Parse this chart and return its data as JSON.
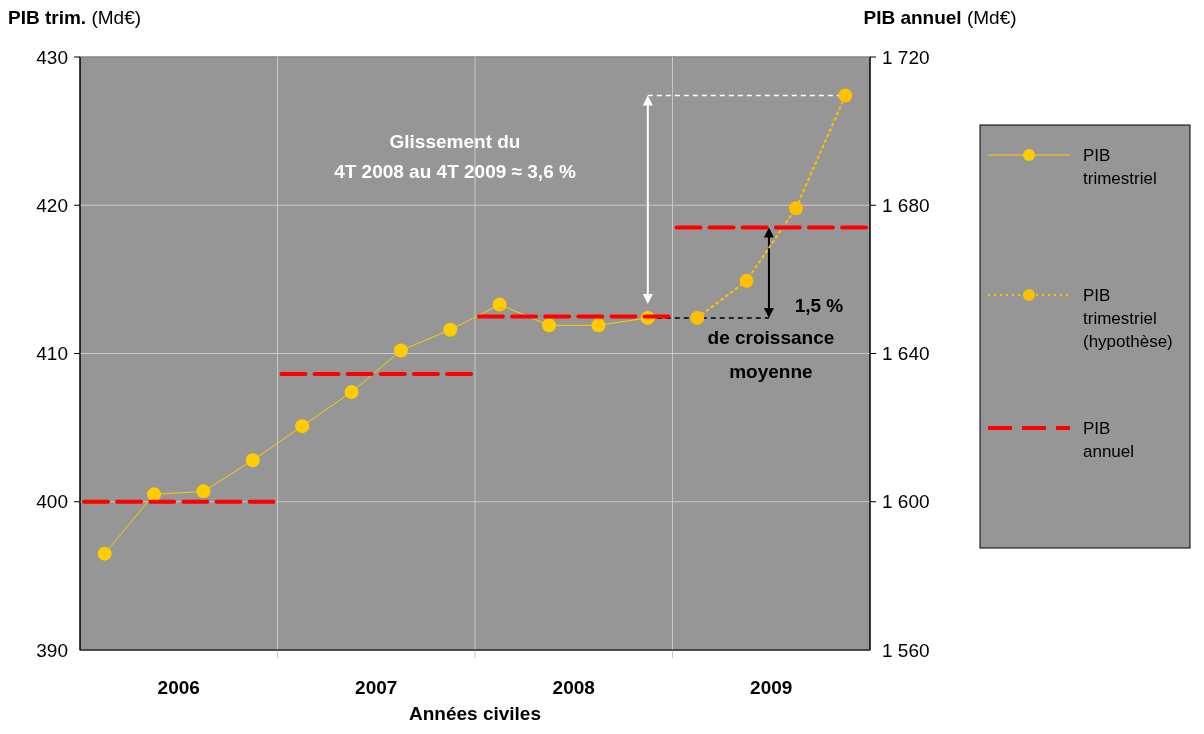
{
  "chart_data": {
    "type": "line",
    "xlabel": "Années civiles",
    "ylabel": "PIB trim. (Md€)",
    "y2label": "PIB annuel (Md€)",
    "xlim": [
      2005.5,
      2009.5
    ],
    "xticks": [
      2006,
      2007,
      2008,
      2009
    ],
    "ref_lines": [
      {
        "axis": "x",
        "value": 2006.5,
        "color": "#c8c8c8"
      },
      {
        "axis": "x",
        "value": 2007.5,
        "color": "#c8c8c8"
      },
      {
        "axis": "x",
        "value": 2008.5,
        "color": "#c8c8c8"
      }
    ],
    "ylim": [
      390,
      430
    ],
    "yticks": [
      390,
      400,
      410,
      420,
      430
    ],
    "y2lim": [
      1560,
      1720
    ],
    "y2ticks": [
      {
        "value": 1560,
        "label": "1 560"
      },
      {
        "value": 1600,
        "label": "1 600"
      },
      {
        "value": 1640,
        "label": "1 640"
      },
      {
        "value": 1680,
        "label": "1 680"
      },
      {
        "value": 1720,
        "label": "1 720"
      }
    ],
    "grid": "y",
    "legend": "right",
    "marker": "circle",
    "series": [
      {
        "name": "PIB trimestriel",
        "color": "#ffcc00",
        "line_style": "solid",
        "x": [
          2005.625,
          2005.875,
          2006.125,
          2006.375,
          2006.625,
          2006.875,
          2007.125,
          2007.375,
          2007.625,
          2007.875,
          2008.125,
          2008.375
        ],
        "values": [
          396.5,
          400.5,
          400.7,
          402.8,
          405.1,
          407.4,
          410.2,
          411.6,
          413.3,
          411.9,
          411.9,
          412.4
        ]
      },
      {
        "name": "PIB trimestriel (hypothèse)",
        "color": "#ffc000",
        "line_style": "dotted",
        "x": [
          2008.625,
          2008.875,
          2009.125,
          2009.375
        ],
        "values": [
          412.4,
          414.9,
          419.8,
          427.4
        ]
      },
      {
        "name": "PIB annuel",
        "color": "#ff0000",
        "line_style": "dashed",
        "axis": "y2",
        "marker": "none",
        "x": [
          2005.52,
          2006.48,
          2006.5,
          2006.52,
          2007.48,
          2007.5,
          2007.52,
          2008.48,
          2008.5,
          2008.52,
          2009.48
        ],
        "values": [
          1600,
          1600,
          null,
          1634.5,
          1634.5,
          null,
          1650,
          1650,
          null,
          1674,
          1674
        ]
      }
    ],
    "annotations": [
      "Glissement du\n4T 2008 au 4T 2009 ≈ 3,6 %",
      {
        "text": "1,5 %\nde croissance\nmoyenne",
        "x": 2008.375,
        "y": 412.4
      }
    ]
  }
}
